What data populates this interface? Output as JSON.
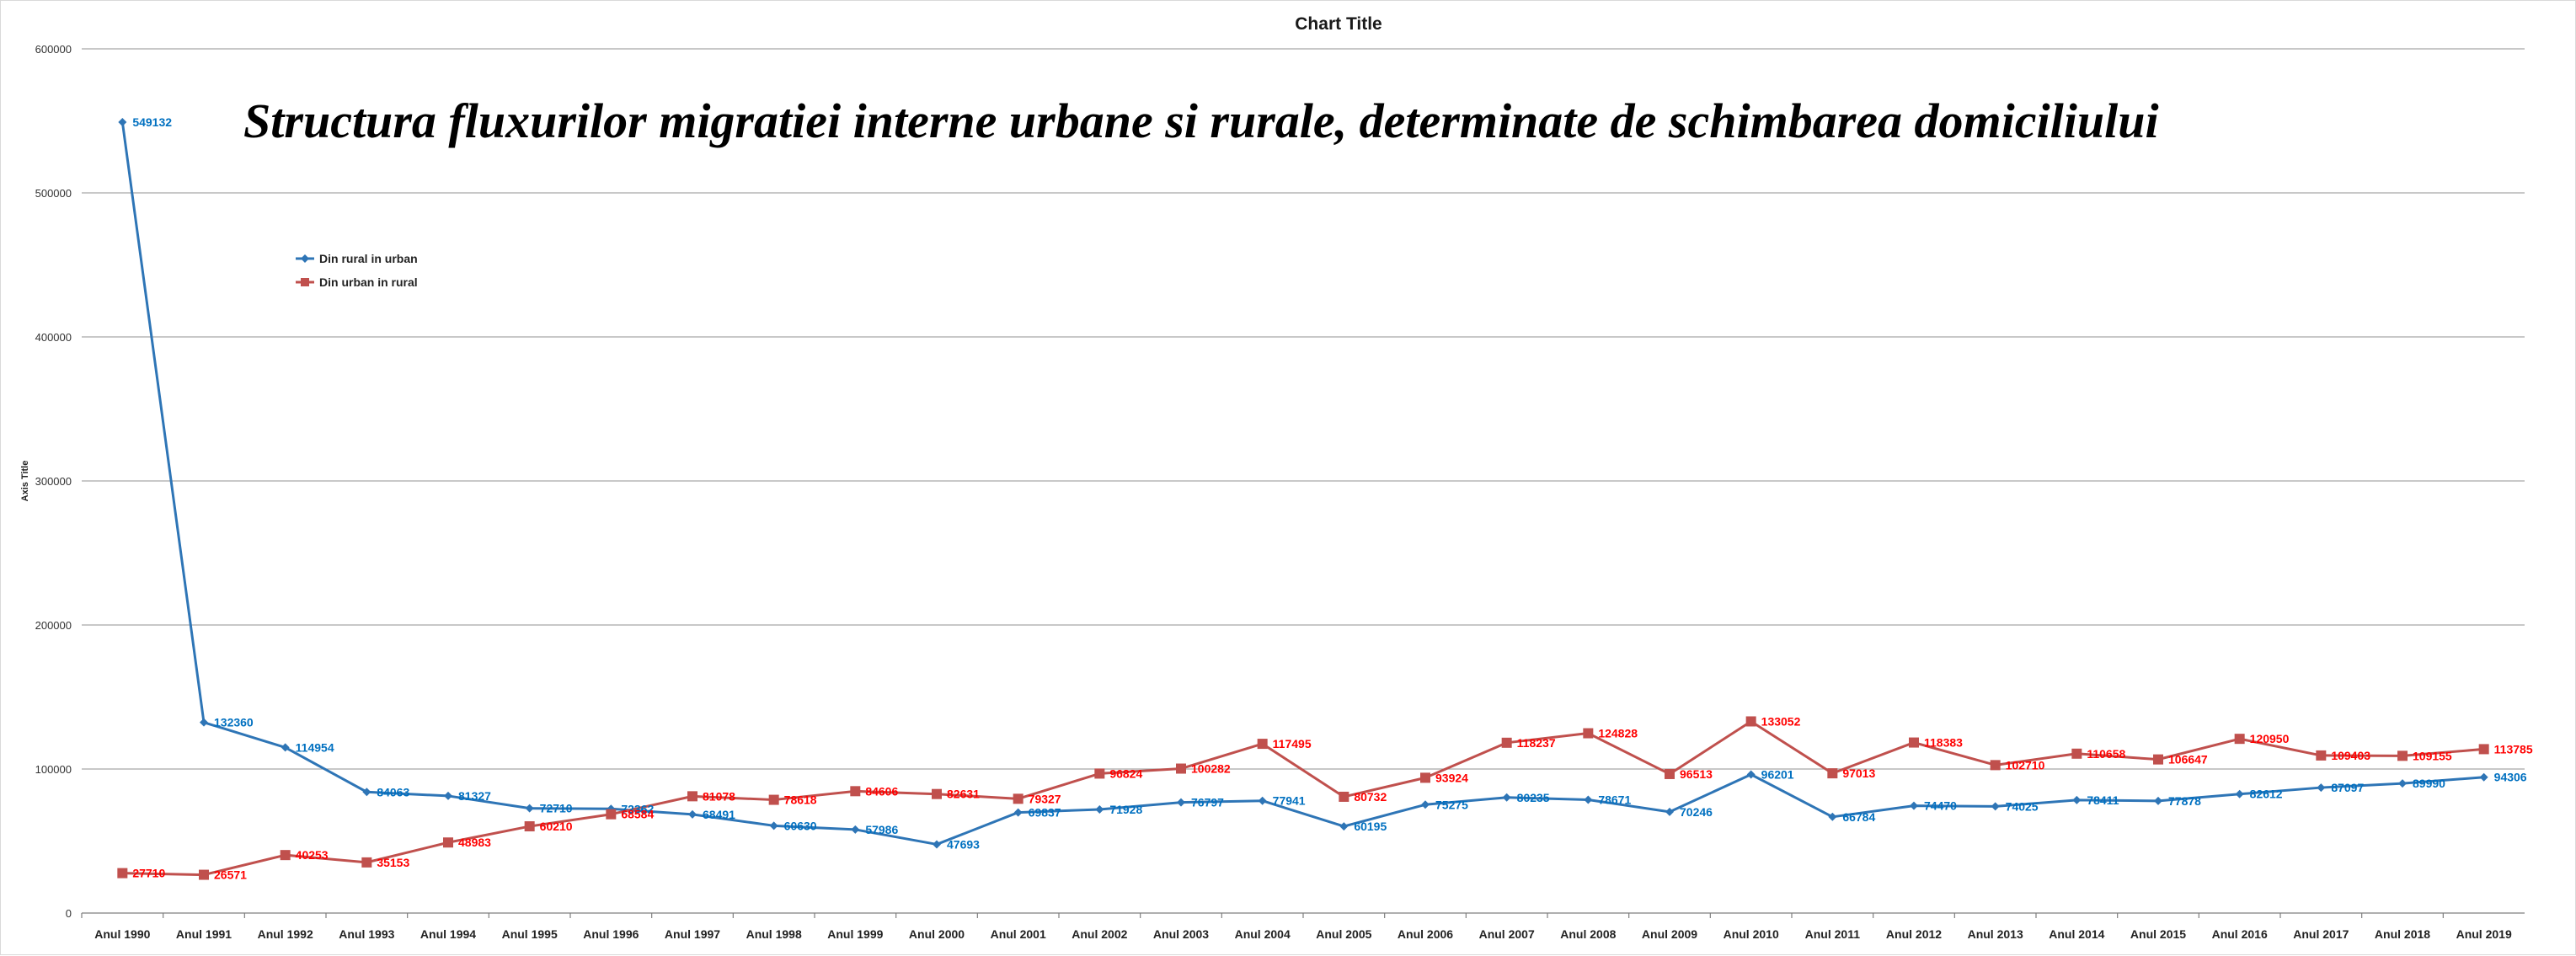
{
  "chart_data": {
    "type": "line",
    "title": "Chart Title",
    "overlay_title": "Structura fluxurilor migratiei interne urbane si rurale, determinate de schimbarea domiciliului",
    "xlabel": "",
    "ylabel": "Axis Title",
    "ylim": [
      0,
      600000
    ],
    "yticks": [
      0,
      100000,
      200000,
      300000,
      400000,
      500000,
      600000
    ],
    "grid": true,
    "legend_position": "top-left",
    "categories": [
      "Anul 1990",
      "Anul 1991",
      "Anul 1992",
      "Anul 1993",
      "Anul 1994",
      "Anul 1995",
      "Anul 1996",
      "Anul 1997",
      "Anul 1998",
      "Anul 1999",
      "Anul 2000",
      "Anul 2001",
      "Anul 2002",
      "Anul 2003",
      "Anul 2004",
      "Anul 2005",
      "Anul 2006",
      "Anul 2007",
      "Anul 2008",
      "Anul 2009",
      "Anul 2010",
      "Anul 2011",
      "Anul 2012",
      "Anul 2013",
      "Anul 2014",
      "Anul 2015",
      "Anul 2016",
      "Anul 2017",
      "Anul 2018",
      "Anul 2019"
    ],
    "series": [
      {
        "name": "Din rural in urban",
        "color": "#2e75b6",
        "marker": "diamond",
        "values": [
          549132,
          132360,
          114954,
          84063,
          81327,
          72710,
          72362,
          68491,
          60630,
          57986,
          47693,
          69837,
          71928,
          76797,
          77941,
          60195,
          75275,
          80235,
          78671,
          70246,
          96201,
          66784,
          74470,
          74025,
          78411,
          77878,
          82612,
          87097,
          89990,
          94306
        ]
      },
      {
        "name": "Din urban in rural",
        "color": "#c0504d",
        "marker": "square",
        "values": [
          27710,
          26571,
          40253,
          35153,
          48983,
          60210,
          68584,
          81078,
          78618,
          84606,
          82631,
          79327,
          96824,
          100282,
          117495,
          80732,
          93924,
          118237,
          124828,
          96513,
          133052,
          97013,
          118383,
          102710,
          110658,
          106647,
          120950,
          109403,
          109155,
          113785
        ]
      }
    ],
    "label_colors": {
      "rural_to_urban": "#0070c0",
      "urban_to_rural": "#ff0000"
    }
  }
}
